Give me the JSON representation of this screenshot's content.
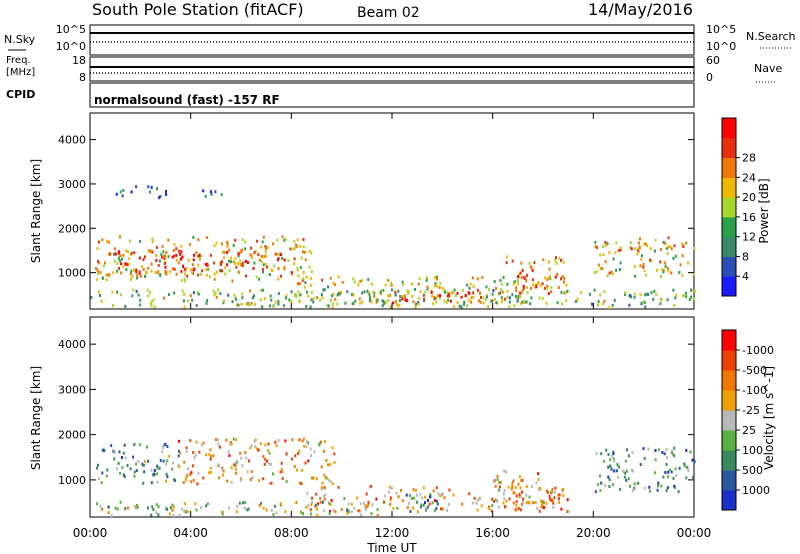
{
  "header": {
    "title": "South Pole Station (fitACF)",
    "beam": "Beam 02",
    "date": "14/May/2016"
  },
  "top_panels": {
    "nsky_label": "N.Sky",
    "nsky_top": "10^5",
    "nsky_bottom": "10^0",
    "nsearch_label": "N.Search",
    "nsearch_top": "10^5",
    "nsearch_bottom": "10^0",
    "freq_label_1": "Freq.",
    "freq_label_2": "[MHz]",
    "freq_top": "18",
    "freq_bottom": "8",
    "nave_label": "Nave",
    "nave_top": "60",
    "nave_bottom": "0",
    "cpid_label": "CPID",
    "cpid_text": "normalsound (fast) -157 RF"
  },
  "chart_data": [
    {
      "type": "heatmap",
      "quantity": "Power",
      "ylabel": "Slant Range [km]",
      "xlabel": "Time UT",
      "x_ticks": [
        "00:00",
        "04:00",
        "08:00",
        "12:00",
        "16:00",
        "20:00",
        "00:00"
      ],
      "y_ticks": [
        1000,
        2000,
        3000,
        4000
      ],
      "ylim": [
        180,
        4600
      ],
      "colorbar_label": "Power [dB]",
      "colorbar_ticks": [
        "4",
        "8",
        "12",
        "16",
        "20",
        "24",
        "28"
      ],
      "colorbar_colors": [
        "#1a1aff",
        "#2a50b8",
        "#3a8a6a",
        "#2aa04a",
        "#a8d828",
        "#f0b800",
        "#f07800",
        "#e83010",
        "#ff0000"
      ],
      "regions": [
        {
          "t0": 0.2,
          "t1": 8.8,
          "r0": 800,
          "r1": 1800,
          "c": 0.62
        },
        {
          "t0": 0.8,
          "t1": 8.0,
          "r0": 950,
          "r1": 1500,
          "c": 0.82
        },
        {
          "t0": 1.0,
          "t1": 3.0,
          "r0": 2650,
          "r1": 2950,
          "c": 0.1
        },
        {
          "t0": 4.0,
          "t1": 5.2,
          "r0": 2700,
          "r1": 2900,
          "c": 0.1
        },
        {
          "t0": 8.2,
          "t1": 19.0,
          "r0": 280,
          "r1": 900,
          "c": 0.55
        },
        {
          "t0": 12.0,
          "t1": 15.5,
          "r0": 300,
          "r1": 600,
          "c": 0.88
        },
        {
          "t0": 16.5,
          "t1": 18.8,
          "r0": 500,
          "r1": 1350,
          "c": 0.75
        },
        {
          "t0": 20.0,
          "t1": 24.0,
          "r0": 900,
          "r1": 1800,
          "c": 0.6
        },
        {
          "t0": 0.0,
          "t1": 24.0,
          "r0": 200,
          "r1": 600,
          "c": 0.45
        }
      ]
    },
    {
      "type": "heatmap",
      "quantity": "Velocity",
      "ylabel": "Slant Range [km]",
      "xlabel": "Time UT",
      "x_ticks": [
        "00:00",
        "04:00",
        "08:00",
        "12:00",
        "16:00",
        "20:00",
        "00:00"
      ],
      "y_ticks": [
        1000,
        2000,
        3000,
        4000
      ],
      "ylim": [
        180,
        4600
      ],
      "colorbar_label": "Velocity [m s^-1]",
      "colorbar_ticks": [
        "1000",
        "500",
        "100",
        "25",
        "-25",
        "-100",
        "-500",
        "-1000"
      ],
      "colorbar_colors": [
        "#1a30c8",
        "#2a58a0",
        "#3a8a60",
        "#5ab040",
        "#b8b8b8",
        "#f0a000",
        "#f07800",
        "#f04000",
        "#ff0000"
      ],
      "regions": [
        {
          "t0": 0.2,
          "t1": 3.5,
          "r0": 900,
          "r1": 1800,
          "c": 0.35
        },
        {
          "t0": 3.5,
          "t1": 9.8,
          "r0": 900,
          "r1": 1900,
          "c": 0.66
        },
        {
          "t0": 8.5,
          "t1": 19.0,
          "r0": 280,
          "r1": 850,
          "c": 0.66
        },
        {
          "t0": 12.0,
          "t1": 14.0,
          "r0": 280,
          "r1": 700,
          "c": 0.3
        },
        {
          "t0": 16.0,
          "t1": 18.8,
          "r0": 350,
          "r1": 1200,
          "c": 0.66
        },
        {
          "t0": 20.0,
          "t1": 24.0,
          "r0": 700,
          "r1": 1700,
          "c": 0.28
        },
        {
          "t0": 0.0,
          "t1": 12.0,
          "r0": 200,
          "r1": 500,
          "c": 0.45
        }
      ]
    }
  ]
}
